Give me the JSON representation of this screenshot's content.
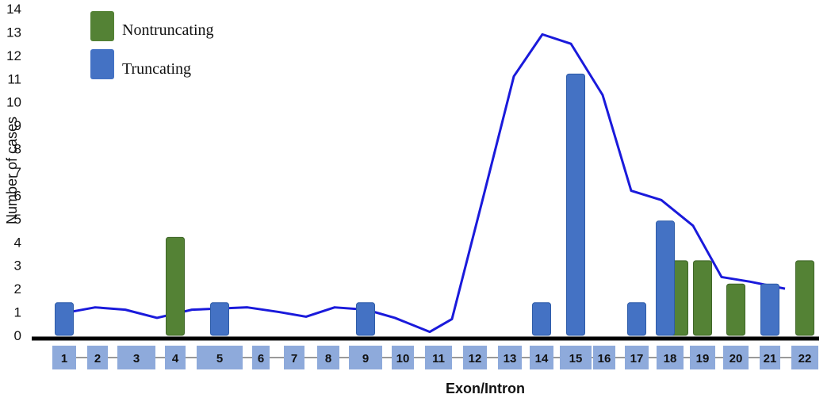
{
  "chart_data": {
    "type": "bar",
    "ylabel": "Number of cases",
    "xlabel": "Exon/Intron",
    "ylim": [
      0,
      14
    ],
    "y_ticks": [
      0,
      1,
      2,
      3,
      4,
      5,
      6,
      7,
      8,
      9,
      10,
      11,
      12,
      13,
      14
    ],
    "grid": false,
    "legend_position": "top-left",
    "exons": [
      "1",
      "2",
      "3",
      "4",
      "5",
      "6",
      "7",
      "8",
      "9",
      "10",
      "11",
      "12",
      "13",
      "14",
      "15",
      "16",
      "17",
      "18",
      "19",
      "20",
      "21",
      "22"
    ],
    "series": [
      {
        "name": "Nontruncating",
        "color": "#548235",
        "bars": [
          {
            "exon": "4",
            "value": 4.2
          },
          {
            "exon": "18",
            "value": 3.2
          },
          {
            "exon": "19",
            "value": 3.2
          },
          {
            "exon": "20",
            "value": 2.2
          },
          {
            "exon": "22",
            "value": 3.2
          }
        ]
      },
      {
        "name": "Truncating",
        "color": "#4472C4",
        "bars": [
          {
            "exon": "1",
            "value": 1.4
          },
          {
            "exon": "5",
            "value": 1.4
          },
          {
            "exon": "9",
            "value": 1.4
          },
          {
            "exon": "14",
            "value": 1.4
          },
          {
            "exon": "15",
            "value": 11.2
          },
          {
            "exon": "17",
            "value": 1.4
          },
          {
            "exon": "18",
            "value": 4.9
          },
          {
            "exon": "21",
            "value": 2.2
          }
        ]
      }
    ],
    "trend_line": {
      "type": "line",
      "color": "#1a1adb",
      "points": [
        [
          "1",
          1.0
        ],
        [
          "2",
          1.2
        ],
        [
          "3",
          1.1
        ],
        [
          "4",
          0.75
        ],
        [
          "5",
          1.1
        ],
        [
          "6",
          1.2
        ],
        [
          "7",
          1.0
        ],
        [
          "8",
          0.8
        ],
        [
          "9",
          1.2
        ],
        [
          "10",
          1.1
        ],
        [
          "11",
          0.75
        ],
        [
          "12",
          0.15
        ],
        [
          "13",
          0.7
        ],
        [
          "14",
          6.0
        ],
        [
          "15",
          11.1
        ],
        [
          "16",
          12.9
        ],
        [
          "17",
          12.5
        ],
        [
          "18",
          10.3
        ],
        [
          "19",
          6.2
        ],
        [
          "20",
          5.8
        ],
        [
          "21",
          4.7
        ],
        [
          "22",
          2.5
        ],
        [
          "23",
          2.3
        ],
        [
          "24",
          2.0
        ]
      ]
    }
  }
}
